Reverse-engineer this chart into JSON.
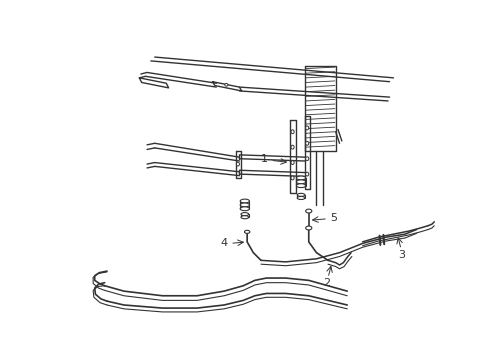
{
  "background_color": "#ffffff",
  "line_color": "#333333",
  "lw": 1.0,
  "label_1": "1",
  "label_2": "2",
  "label_3": "3",
  "label_4": "4",
  "label_5": "5",
  "font_size": 8,
  "fig_width": 4.89,
  "fig_height": 3.6,
  "dpi": 100
}
